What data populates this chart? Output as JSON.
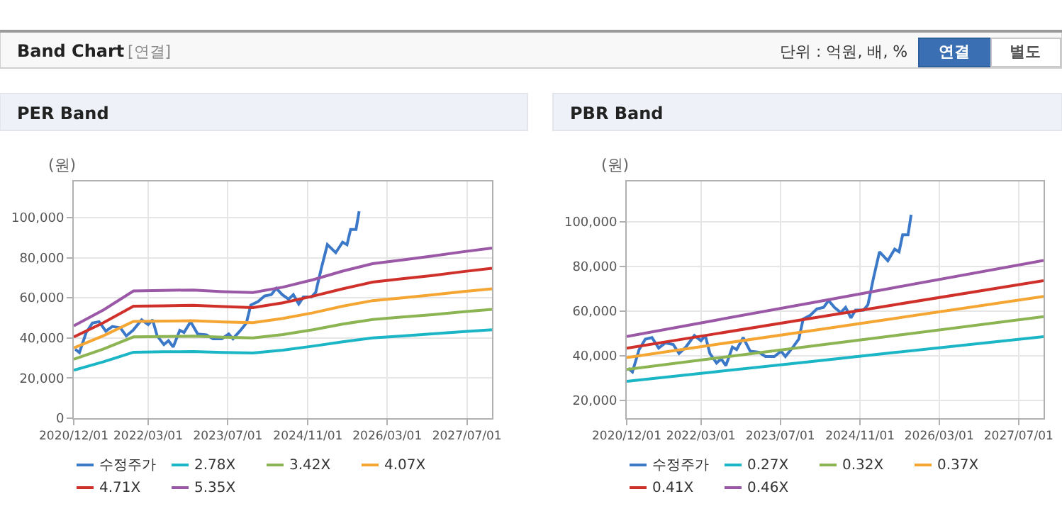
{
  "chart_data": [
    {
      "type": "other",
      "title": "Band Chart",
      "annotations": [
        "[연결]",
        "단위 : 억원, 배, %",
        "연결",
        "별도"
      ]
    },
    {
      "type": "line",
      "title": "PER Band",
      "ylabel": "(원)",
      "grid": true,
      "legend": "bottom",
      "xlim": [
        "2020-12-01",
        "2027-12-01"
      ],
      "xticks": [
        {
          "value": "2020-12-01",
          "label": "2020/12/01"
        },
        {
          "value": "2022-03-01",
          "label": "2022/03/01"
        },
        {
          "value": "2023-07-01",
          "label": "2023/07/01"
        },
        {
          "value": "2024-11-01",
          "label": "2024/11/01"
        },
        {
          "value": "2026-03-01",
          "label": "2026/03/01"
        },
        {
          "value": "2027-07-01",
          "label": "2027/07/01"
        }
      ],
      "ylim": [
        0,
        118000
      ],
      "yticks": [
        0,
        {
          "value": 20000,
          "label": "20,000"
        },
        {
          "value": 40000,
          "label": "40,000"
        },
        {
          "value": 60000,
          "label": "60,000"
        },
        {
          "value": 80000,
          "label": "80,000"
        },
        {
          "value": 100000,
          "label": "100,000"
        }
      ],
      "series": [
        {
          "name": "수정주가",
          "color": "#3b78c8",
          "x": [
            "2020-12-10",
            "2021-01-05",
            "2021-02-15",
            "2021-03-25",
            "2021-05-05",
            "2021-06-15",
            "2021-07-25",
            "2021-09-12",
            "2021-10-18",
            "2021-11-28",
            "2022-01-20",
            "2022-03-01",
            "2022-03-28",
            "2022-04-25",
            "2022-06-05",
            "2022-07-03",
            "2022-08-01",
            "2022-09-10",
            "2022-10-06",
            "2022-11-15",
            "2022-12-28",
            "2023-02-20",
            "2023-04-01",
            "2023-05-25",
            "2023-07-06",
            "2023-08-01",
            "2023-09-12",
            "2023-10-22",
            "2023-11-18",
            "2024-01-01",
            "2024-02-10",
            "2024-03-22",
            "2024-04-22",
            "2024-05-28",
            "2024-07-06",
            "2024-08-04",
            "2024-09-06",
            "2024-10-04",
            "2024-11-22",
            "2024-12-19",
            "2025-01-22",
            "2025-02-28",
            "2025-04-20",
            "2025-06-01",
            "2025-06-28",
            "2025-07-20",
            "2025-08-22",
            "2025-09-10"
          ],
          "values": [
            34400,
            32700,
            42700,
            47400,
            48100,
            43400,
            45700,
            45000,
            41000,
            43800,
            49000,
            46700,
            49000,
            41000,
            36700,
            38600,
            35500,
            43800,
            42700,
            48100,
            42000,
            41500,
            39600,
            39600,
            42000,
            39600,
            43400,
            47400,
            56400,
            58100,
            60900,
            61600,
            64700,
            61600,
            59300,
            61600,
            56900,
            60400,
            60400,
            62800,
            74700,
            86500,
            82500,
            87700,
            86500,
            94100,
            94100,
            103100
          ]
        },
        {
          "name": "2.78X",
          "color": "#1bb6c6",
          "x": [
            "2020-12-01",
            "2021-06-01",
            "2021-12-01",
            "2022-06-01",
            "2022-12-01",
            "2023-06-01",
            "2023-12-01",
            "2024-06-01",
            "2024-12-01",
            "2025-06-01",
            "2025-12-01",
            "2026-06-01",
            "2026-12-01",
            "2027-06-01",
            "2027-12-01"
          ],
          "values": [
            23900,
            28100,
            32900,
            33100,
            33200,
            32800,
            32500,
            33900,
            35900,
            38100,
            40000,
            41000,
            42000,
            43100,
            44100
          ]
        },
        {
          "name": "3.42X",
          "color": "#8cb453",
          "x": [
            "2020-12-01",
            "2021-06-01",
            "2021-12-01",
            "2022-06-01",
            "2022-12-01",
            "2023-06-01",
            "2023-12-01",
            "2024-06-01",
            "2024-12-01",
            "2025-06-01",
            "2025-12-01",
            "2026-06-01",
            "2026-12-01",
            "2027-06-01",
            "2027-12-01"
          ],
          "values": [
            29400,
            34500,
            40500,
            40700,
            40900,
            40400,
            40000,
            41700,
            44100,
            46900,
            49200,
            50400,
            51600,
            53000,
            54200
          ]
        },
        {
          "name": "4.07X",
          "color": "#f4a532",
          "x": [
            "2020-12-01",
            "2021-06-01",
            "2021-12-01",
            "2022-06-01",
            "2022-12-01",
            "2023-06-01",
            "2023-12-01",
            "2024-06-01",
            "2024-12-01",
            "2025-06-01",
            "2025-12-01",
            "2026-06-01",
            "2026-12-01",
            "2027-06-01",
            "2027-12-01"
          ],
          "values": [
            35000,
            41100,
            48200,
            48400,
            48600,
            48000,
            47600,
            49700,
            52500,
            55800,
            58600,
            60000,
            61500,
            63100,
            64500
          ]
        },
        {
          "name": "4.71X",
          "color": "#d0302a",
          "x": [
            "2020-12-01",
            "2021-06-01",
            "2021-12-01",
            "2022-06-01",
            "2022-12-01",
            "2023-06-01",
            "2023-12-01",
            "2024-06-01",
            "2024-12-01",
            "2025-06-01",
            "2025-12-01",
            "2026-06-01",
            "2026-12-01",
            "2027-06-01",
            "2027-12-01"
          ],
          "values": [
            40500,
            47600,
            55800,
            56000,
            56300,
            55600,
            55100,
            57500,
            60800,
            64500,
            67800,
            69500,
            71100,
            73000,
            74700
          ]
        },
        {
          "name": "5.35X",
          "color": "#9a58a6",
          "x": [
            "2020-12-01",
            "2021-06-01",
            "2021-12-01",
            "2022-06-01",
            "2022-12-01",
            "2023-06-01",
            "2023-12-01",
            "2024-06-01",
            "2024-12-01",
            "2025-06-01",
            "2025-12-01",
            "2026-06-01",
            "2026-12-01",
            "2027-06-01",
            "2027-12-01"
          ],
          "values": [
            46000,
            54000,
            63400,
            63700,
            63900,
            63100,
            62600,
            65300,
            69000,
            73300,
            77000,
            78900,
            80800,
            82900,
            84800
          ]
        }
      ]
    },
    {
      "type": "line",
      "title": "PBR Band",
      "ylabel": "(원)",
      "grid": true,
      "legend": "bottom",
      "xlim": [
        "2020-12-01",
        "2027-12-01"
      ],
      "xticks": [
        {
          "value": "2020-12-01",
          "label": "2020/12/01"
        },
        {
          "value": "2022-03-01",
          "label": "2022/03/01"
        },
        {
          "value": "2023-07-01",
          "label": "2023/07/01"
        },
        {
          "value": "2024-11-01",
          "label": "2024/11/01"
        },
        {
          "value": "2026-03-01",
          "label": "2026/03/01"
        },
        {
          "value": "2027-07-01",
          "label": "2027/07/01"
        }
      ],
      "ylim": [
        12000,
        118000
      ],
      "yticks": [
        {
          "value": 20000,
          "label": "20,000"
        },
        {
          "value": 40000,
          "label": "40,000"
        },
        {
          "value": 60000,
          "label": "60,000"
        },
        {
          "value": 80000,
          "label": "80,000"
        },
        {
          "value": 100000,
          "label": "100,000"
        }
      ],
      "series": [
        {
          "name": "수정주가",
          "color": "#3b78c8",
          "x": [
            "2020-12-10",
            "2021-01-05",
            "2021-02-15",
            "2021-03-25",
            "2021-05-05",
            "2021-06-15",
            "2021-07-25",
            "2021-09-12",
            "2021-10-18",
            "2021-11-28",
            "2022-01-20",
            "2022-03-01",
            "2022-03-28",
            "2022-04-25",
            "2022-06-05",
            "2022-07-03",
            "2022-08-01",
            "2022-09-10",
            "2022-10-06",
            "2022-11-15",
            "2022-12-28",
            "2023-02-20",
            "2023-04-01",
            "2023-05-25",
            "2023-07-06",
            "2023-08-01",
            "2023-09-12",
            "2023-10-22",
            "2023-11-18",
            "2024-01-01",
            "2024-02-10",
            "2024-03-22",
            "2024-04-22",
            "2024-05-28",
            "2024-07-06",
            "2024-08-04",
            "2024-09-06",
            "2024-10-04",
            "2024-11-22",
            "2024-12-19",
            "2025-01-22",
            "2025-02-28",
            "2025-04-20",
            "2025-06-01",
            "2025-06-28",
            "2025-07-20",
            "2025-08-22",
            "2025-09-10"
          ],
          "values": [
            34400,
            32700,
            42700,
            47400,
            48100,
            43400,
            45700,
            45000,
            41000,
            43800,
            49000,
            46700,
            49000,
            41000,
            36700,
            38600,
            35500,
            43800,
            42700,
            48100,
            42000,
            41500,
            39600,
            39600,
            42000,
            39600,
            43400,
            47400,
            56400,
            58100,
            60900,
            61600,
            64700,
            61600,
            59300,
            61600,
            56900,
            60400,
            60400,
            62800,
            74700,
            86500,
            82500,
            87700,
            86500,
            94100,
            94100,
            103100
          ]
        },
        {
          "name": "0.27X",
          "color": "#1bb6c6",
          "x": [
            "2020-12-01",
            "2022-06-01",
            "2024-01-01",
            "2025-06-01",
            "2027-12-01"
          ],
          "values": [
            28500,
            32800,
            37300,
            41400,
            48500
          ]
        },
        {
          "name": "0.32X",
          "color": "#8cb453",
          "x": [
            "2020-12-01",
            "2022-06-01",
            "2024-01-01",
            "2025-06-01",
            "2027-12-01"
          ],
          "values": [
            33800,
            38900,
            44200,
            49000,
            57500
          ]
        },
        {
          "name": "0.37X",
          "color": "#f4a532",
          "x": [
            "2020-12-01",
            "2022-06-01",
            "2024-01-01",
            "2025-06-01",
            "2027-12-01"
          ],
          "values": [
            39100,
            45000,
            51100,
            56700,
            66500
          ]
        },
        {
          "name": "0.41X",
          "color": "#d0302a",
          "x": [
            "2020-12-01",
            "2022-06-01",
            "2024-01-01",
            "2025-06-01",
            "2027-12-01"
          ],
          "values": [
            43300,
            49800,
            56700,
            62800,
            73600
          ]
        },
        {
          "name": "0.46X",
          "color": "#9a58a6",
          "x": [
            "2020-12-01",
            "2022-06-01",
            "2024-01-01",
            "2025-06-01",
            "2027-12-01"
          ],
          "values": [
            48600,
            55900,
            63600,
            70500,
            82600
          ]
        }
      ]
    }
  ]
}
